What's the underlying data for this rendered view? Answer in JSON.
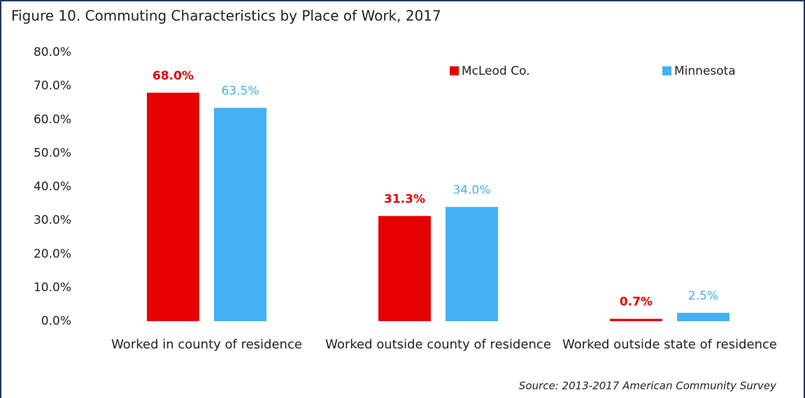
{
  "chart_data": {
    "type": "bar",
    "title": "Figure 10. Commuting Characteristics by Place of Work, 2017",
    "source": "Source: 2013-2017 American Community Survey",
    "categories": [
      "Worked in county of residence",
      "Worked outside county of residence",
      "Worked outside state of residence"
    ],
    "series": [
      {
        "name": "McLeod Co.",
        "color": "#e60000",
        "values": [
          68.0,
          31.3,
          0.7
        ],
        "value_labels": [
          "68.0%",
          "31.3%",
          "0.7%"
        ]
      },
      {
        "name": "Minnesota",
        "color": "#45b0f5",
        "values": [
          63.5,
          34.0,
          2.5
        ],
        "value_labels": [
          "63.5%",
          "34.0%",
          "2.5%"
        ]
      }
    ],
    "ylim": [
      0,
      80
    ],
    "yticks": [
      {
        "value": 0,
        "label": "0.0%"
      },
      {
        "value": 10,
        "label": "10.0%"
      },
      {
        "value": 20,
        "label": "20.0%"
      },
      {
        "value": 30,
        "label": "30.0%"
      },
      {
        "value": 40,
        "label": "40.0%"
      },
      {
        "value": 50,
        "label": "50.0%"
      },
      {
        "value": 60,
        "label": "60.0%"
      },
      {
        "value": 70,
        "label": "70.0%"
      },
      {
        "value": 80,
        "label": "80.0%"
      }
    ],
    "grid": false,
    "legend": "top-right"
  }
}
